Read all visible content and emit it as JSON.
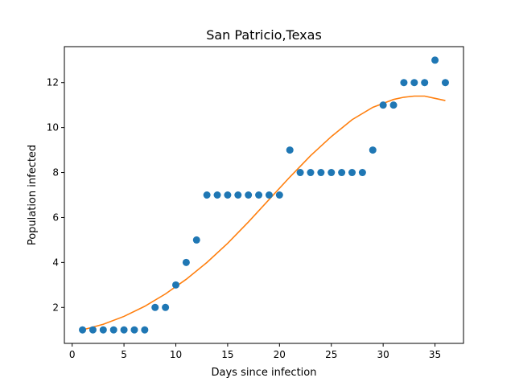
{
  "chart_data": {
    "type": "scatter",
    "title": "San Patricio,Texas",
    "xlabel": "Days since infection",
    "ylabel": "Population infected",
    "xlim": [
      -0.75,
      37.75
    ],
    "ylim": [
      0.4,
      13.6
    ],
    "xticks": [
      0,
      5,
      10,
      15,
      20,
      25,
      30,
      35
    ],
    "yticks": [
      2,
      4,
      6,
      8,
      10,
      12
    ],
    "grid": false,
    "series": [
      {
        "kind": "scatter",
        "color": "#1f77b4",
        "x": [
          1,
          2,
          3,
          4,
          5,
          6,
          7,
          8,
          9,
          10,
          11,
          12,
          13,
          14,
          15,
          16,
          17,
          18,
          19,
          20,
          21,
          22,
          23,
          24,
          25,
          26,
          27,
          28,
          29,
          30,
          31,
          32,
          33,
          34,
          35,
          36
        ],
        "y": [
          1,
          1,
          1,
          1,
          1,
          1,
          1,
          2,
          2,
          3,
          4,
          5,
          7,
          7,
          7,
          7,
          7,
          7,
          7,
          7,
          9,
          8,
          8,
          8,
          8,
          8,
          8,
          8,
          9,
          11,
          11,
          12,
          12,
          12,
          13,
          12
        ]
      },
      {
        "kind": "line",
        "color": "#ff7f0e",
        "x": [
          1,
          3,
          5,
          7,
          9,
          11,
          13,
          15,
          17,
          19,
          21,
          23,
          25,
          27,
          29,
          31,
          32,
          33,
          34,
          35,
          36
        ],
        "y": [
          1.0,
          1.25,
          1.6,
          2.05,
          2.6,
          3.25,
          4.0,
          4.85,
          5.8,
          6.8,
          7.8,
          8.75,
          9.6,
          10.35,
          10.9,
          11.25,
          11.35,
          11.4,
          11.4,
          11.3,
          11.2
        ]
      }
    ]
  }
}
